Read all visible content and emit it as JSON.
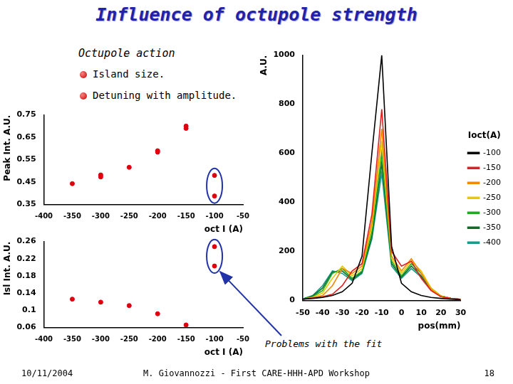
{
  "header": {
    "title": "Influence of octupole strength",
    "heading": "Octupole action",
    "bullets": [
      "Island size.",
      "Detuning with amplitude."
    ]
  },
  "annotation": "Problems with the fit",
  "footer": {
    "date": "10/11/2004",
    "author": "M. Giovannozzi - First CARE-HHH-APD Workshop",
    "page": "18"
  },
  "chart_data": [
    {
      "type": "scatter",
      "x_label": "oct I (A)",
      "y_label": "Peak Int. A.U.",
      "x": [
        -350,
        -300,
        -300,
        -250,
        -200,
        -200,
        -150,
        -150,
        -100,
        -100
      ],
      "values": [
        0.443,
        0.482,
        0.473,
        0.516,
        0.59,
        0.584,
        0.7,
        0.69,
        0.48,
        0.388
      ],
      "color": "#e0000b",
      "marker": "circle",
      "xlim": [
        -400,
        -50
      ],
      "xticks": [
        -400,
        -350,
        -300,
        -250,
        -200,
        -150,
        -100,
        -50
      ],
      "ylim": [
        0.35,
        0.75
      ],
      "yticks": [
        0.35,
        0.45,
        0.55,
        0.65,
        0.75
      ],
      "grid": false
    },
    {
      "type": "scatter",
      "x_label": "oct I (A)",
      "y_label": "Isl Int. A.U.",
      "x": [
        -350,
        -300,
        -250,
        -200,
        -150,
        -100,
        -100
      ],
      "values": [
        0.126,
        0.119,
        0.111,
        0.092,
        0.066,
        0.248,
        0.203
      ],
      "color": "#e0000b",
      "marker": "circle",
      "xlim": [
        -400,
        -50
      ],
      "xticks": [
        -400,
        -350,
        -300,
        -250,
        -200,
        -150,
        -100,
        -50
      ],
      "ylim": [
        0.06,
        0.26
      ],
      "yticks": [
        0.06,
        0.1,
        0.14,
        0.18,
        0.22,
        0.26
      ],
      "grid": false
    },
    {
      "type": "line",
      "x_label": "pos(mm)",
      "y_label": "A.U.",
      "legend_title": "Ioct(A)",
      "legend": "right",
      "x": [
        -50,
        -45,
        -40,
        -35,
        -30,
        -25,
        -20,
        -15,
        -10,
        -5,
        0,
        5,
        10,
        15,
        20,
        25,
        30
      ],
      "series": [
        {
          "name": "-100",
          "color": "#000000",
          "values": [
            5,
            8,
            12,
            20,
            35,
            70,
            180,
            600,
            1000,
            220,
            70,
            35,
            20,
            12,
            8,
            5,
            3
          ]
        },
        {
          "name": "-150",
          "color": "#e02020",
          "values": [
            5,
            10,
            15,
            25,
            60,
            120,
            150,
            350,
            780,
            200,
            140,
            160,
            90,
            40,
            15,
            8,
            4
          ]
        },
        {
          "name": "-200",
          "color": "#f08a00",
          "values": [
            5,
            10,
            20,
            60,
            130,
            110,
            140,
            320,
            700,
            180,
            120,
            170,
            110,
            45,
            15,
            8,
            4
          ]
        },
        {
          "name": "-250",
          "color": "#e8c800",
          "values": [
            5,
            12,
            30,
            90,
            140,
            100,
            130,
            300,
            650,
            170,
            110,
            160,
            120,
            50,
            18,
            8,
            4
          ]
        },
        {
          "name": "-300",
          "color": "#22aa22",
          "values": [
            6,
            15,
            40,
            110,
            130,
            90,
            120,
            280,
            600,
            160,
            100,
            150,
            110,
            50,
            18,
            8,
            4
          ]
        },
        {
          "name": "-350",
          "color": "#0a6e2a",
          "values": [
            6,
            18,
            50,
            115,
            120,
            85,
            115,
            260,
            560,
            150,
            95,
            140,
            100,
            45,
            18,
            8,
            4
          ]
        },
        {
          "name": "-400",
          "color": "#1a9a8a",
          "values": [
            6,
            20,
            60,
            120,
            110,
            80,
            110,
            250,
            520,
            140,
            90,
            130,
            95,
            45,
            18,
            8,
            4
          ]
        }
      ],
      "xlim": [
        -50,
        30
      ],
      "xticks": [
        -50,
        -40,
        -30,
        -20,
        -10,
        0,
        10,
        20,
        30
      ],
      "ylim": [
        0,
        1000
      ],
      "yticks": [
        0,
        200,
        400,
        600,
        800,
        1000
      ],
      "grid": false
    }
  ]
}
